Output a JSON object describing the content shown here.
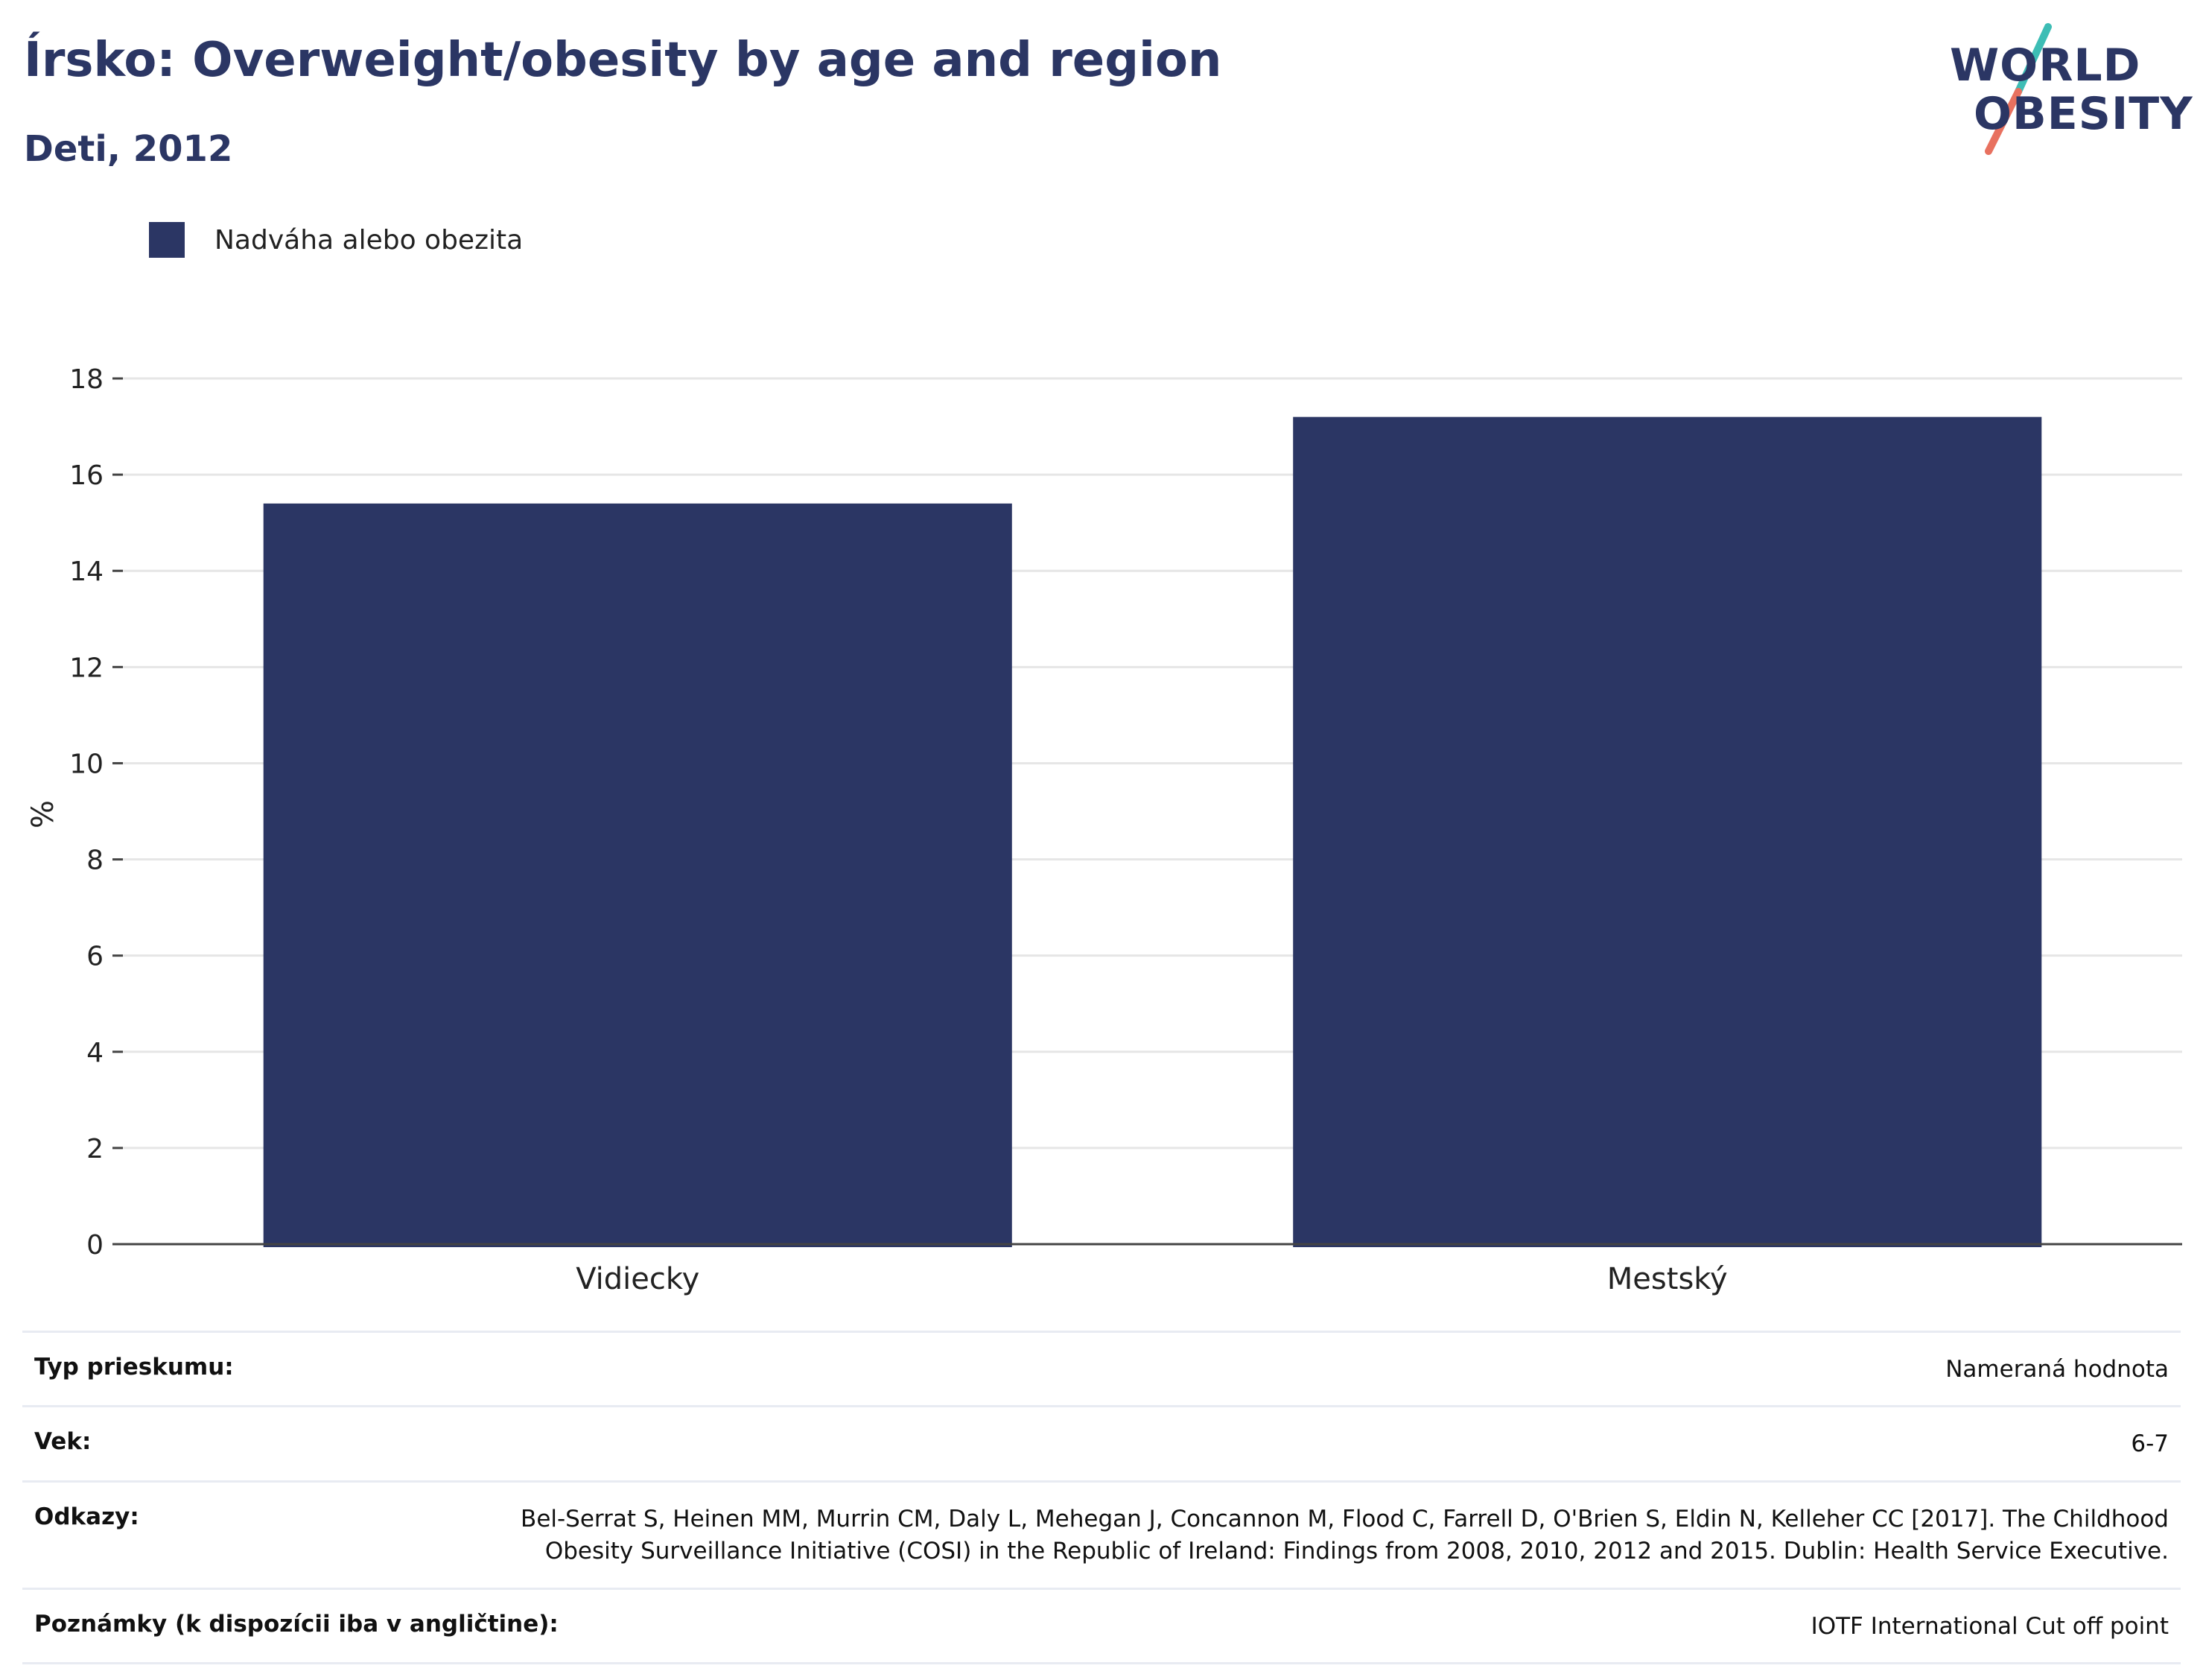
{
  "header": {
    "title": "Írsko: Overweight/obesity by age and region",
    "subtitle": "Deti, 2012"
  },
  "logo": {
    "line1": "WORLD",
    "line2": "OBESITY",
    "colors": {
      "text": "#2b3664",
      "slash_top": "#3dbdb5",
      "slash_bottom": "#e8715f"
    }
  },
  "colors": {
    "bar": "#2b3664",
    "grid": "#e6e6e6",
    "axis": "#444444"
  },
  "chart_data": {
    "type": "bar",
    "categories": [
      "Vidiecky",
      "Mestský"
    ],
    "series": [
      {
        "name": "Nadváha alebo obezita",
        "values": [
          15.4,
          17.2
        ]
      }
    ],
    "ylabel": "%",
    "ylim": [
      0,
      18
    ],
    "yticks": [
      "0",
      "2",
      "4",
      "6",
      "8",
      "10",
      "12",
      "14",
      "16",
      "18"
    ],
    "grid": true,
    "legend_position": "top-left"
  },
  "info": {
    "rows": [
      {
        "label": "Typ prieskumu:",
        "value": "Nameraná hodnota"
      },
      {
        "label": "Vek:",
        "value": "6-7"
      },
      {
        "label": "Odkazy:",
        "value": "Bel-Serrat S, Heinen MM, Murrin CM, Daly L, Mehegan J, Concannon M, Flood C, Farrell D, O'Brien S, Eldin N, Kelleher CC [2017]. The Childhood Obesity Surveillance Initiative (COSI) in the Republic of Ireland: Findings from 2008, 2010, 2012 and 2015. Dublin: Health Service Executive."
      },
      {
        "label": "Poznámky (k dispozícii iba v angličtine):",
        "value": "IOTF International Cut off point"
      }
    ]
  }
}
